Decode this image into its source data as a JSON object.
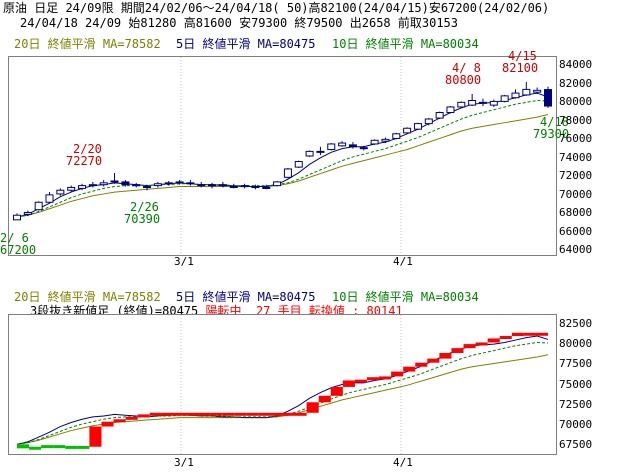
{
  "header": {
    "line1": "原油 日足 24/09限 期間24/02/06～24/04/18( 50)高82100(24/04/15)安67200(24/02/06)",
    "line2": "24/04/18 24/09 始81280 高81600 安79300 終79500 出2658 前取30153"
  },
  "ma_legend": {
    "ma20": "20日 終値平滑 MA=78582",
    "ma5": "5日 終値平滑 MA=80475",
    "ma10": "10日 終値平滑 MA=80034"
  },
  "lower_info": {
    "prefix": "3段抜き新値足 (終値)=80475",
    "status": "陽転中",
    "count": "27 手目",
    "switch": "転換値 : 80141"
  },
  "annotations": {
    "a1_date": "2/ 6",
    "a1_val": "67200",
    "a2_date": "2/20",
    "a2_val": "72270",
    "a3_date": "2/26",
    "a3_val": "70390",
    "a4_date": "4/ 8",
    "a4_val": "80800",
    "a5_date": "4/15",
    "a5_val": "82100",
    "a6_date": "4/18",
    "a6_val": "79300"
  },
  "x_ticks": [
    "3/1",
    "4/1"
  ],
  "colors": {
    "ma20": "#808000",
    "ma5": "#000080",
    "ma10": "#008000",
    "up": "#ff0000",
    "down": "#000080",
    "red_text": "#cc0000",
    "green_text": "#008000",
    "kagi_up": "#ff0000",
    "kagi_down": "#00c000"
  },
  "chart_data": [
    {
      "type": "candlestick",
      "y_ticks": [
        64000,
        66000,
        68000,
        70000,
        72000,
        74000,
        76000,
        78000,
        80000,
        82000,
        84000
      ],
      "ylim": [
        63400,
        84800
      ],
      "x_ticks": [
        "3/1",
        "4/1"
      ],
      "series": [
        {
          "name": "OHLC",
          "values": [
            [
              67200,
              67900,
              67200,
              67700
            ],
            [
              67800,
              68200,
              67600,
              68000
            ],
            [
              68300,
              69200,
              68200,
              69100
            ],
            [
              69100,
              70200,
              69000,
              69900
            ],
            [
              70000,
              70600,
              69800,
              70400
            ],
            [
              70400,
              70900,
              70200,
              70700
            ],
            [
              70600,
              71100,
              70400,
              70900
            ],
            [
              70900,
              71300,
              70700,
              71000
            ],
            [
              71000,
              71500,
              70800,
              71200
            ],
            [
              71300,
              72270,
              71100,
              71400
            ],
            [
              71300,
              71500,
              70800,
              71000
            ],
            [
              71000,
              71200,
              70700,
              70900
            ],
            [
              70700,
              71000,
              70390,
              70800
            ],
            [
              70900,
              71300,
              70700,
              71100
            ],
            [
              71100,
              71400,
              70900,
              71200
            ],
            [
              71200,
              71500,
              71000,
              71300
            ],
            [
              71200,
              71500,
              70900,
              71100
            ],
            [
              71000,
              71300,
              70700,
              70900
            ],
            [
              70900,
              71200,
              70600,
              71000
            ],
            [
              71000,
              71300,
              70700,
              70900
            ],
            [
              70800,
              71100,
              70600,
              70800
            ],
            [
              70900,
              71100,
              70600,
              70800
            ],
            [
              70700,
              71000,
              70500,
              70800
            ],
            [
              70700,
              71000,
              70500,
              70700
            ],
            [
              70900,
              71400,
              70800,
              71300
            ],
            [
              71800,
              72800,
              71700,
              72700
            ],
            [
              72900,
              73600,
              72800,
              73500
            ],
            [
              74100,
              74700,
              74000,
              74600
            ],
            [
              74600,
              75100,
              74200,
              74500
            ],
            [
              74800,
              75500,
              74700,
              75400
            ],
            [
              75200,
              75700,
              75100,
              75500
            ],
            [
              75300,
              75600,
              74900,
              75100
            ],
            [
              74900,
              75200,
              74700,
              75000
            ],
            [
              75400,
              75900,
              75300,
              75800
            ],
            [
              75700,
              76100,
              75500,
              75900
            ],
            [
              76000,
              76600,
              75900,
              76500
            ],
            [
              76600,
              77200,
              76500,
              77100
            ],
            [
              77000,
              77700,
              76900,
              77600
            ],
            [
              77600,
              78200,
              77400,
              78100
            ],
            [
              78200,
              78900,
              78100,
              78800
            ],
            [
              78800,
              79500,
              78700,
              79400
            ],
            [
              79400,
              80000,
              79300,
              79900
            ],
            [
              79600,
              80800,
              79500,
              80100
            ],
            [
              79900,
              80300,
              79500,
              79800
            ],
            [
              79600,
              80200,
              79400,
              80000
            ],
            [
              80000,
              80700,
              79900,
              80600
            ],
            [
              80400,
              81300,
              80300,
              80900
            ],
            [
              80700,
              82100,
              80600,
              81300
            ],
            [
              81000,
              81500,
              80800,
              81200
            ],
            [
              81280,
              81600,
              79300,
              79500
            ]
          ]
        },
        {
          "name": "20日 終値平滑",
          "values": [
            67500,
            67700,
            68000,
            68400,
            68800,
            69200,
            69500,
            69800,
            70000,
            70200,
            70300,
            70400,
            70500,
            70600,
            70700,
            70800,
            70800,
            70800,
            70800,
            70800,
            70800,
            70800,
            70800,
            70800,
            70900,
            71100,
            71400,
            71800,
            72200,
            72600,
            73000,
            73300,
            73600,
            73900,
            74200,
            74500,
            74800,
            75200,
            75600,
            76000,
            76400,
            76800,
            77100,
            77300,
            77500,
            77700,
            77900,
            78100,
            78300,
            78582
          ]
        },
        {
          "name": "5日 終値平滑",
          "values": [
            67500,
            67800,
            68400,
            69000,
            69700,
            70200,
            70600,
            70900,
            71000,
            71200,
            71100,
            71000,
            70900,
            71000,
            71100,
            71200,
            71100,
            71000,
            71000,
            70900,
            70900,
            70800,
            70800,
            70800,
            71000,
            71600,
            72300,
            73200,
            73900,
            74500,
            74900,
            75100,
            75100,
            75400,
            75600,
            76000,
            76500,
            77000,
            77600,
            78200,
            78800,
            79300,
            79700,
            79800,
            79900,
            80100,
            80400,
            80700,
            80900,
            80475
          ]
        },
        {
          "name": "10日 終値平滑",
          "values": [
            67500,
            67700,
            68100,
            68600,
            69100,
            69600,
            70000,
            70300,
            70600,
            70800,
            70900,
            70900,
            70900,
            71000,
            71000,
            71100,
            71100,
            71000,
            71000,
            71000,
            70900,
            70900,
            70900,
            70900,
            71000,
            71200,
            71600,
            72100,
            72600,
            73100,
            73600,
            74000,
            74300,
            74600,
            74900,
            75300,
            75700,
            76100,
            76600,
            77100,
            77600,
            78100,
            78500,
            78800,
            79100,
            79400,
            79700,
            79900,
            80100,
            80034
          ]
        }
      ]
    },
    {
      "type": "new-price-bars",
      "y_ticks": [
        67500,
        70000,
        72500,
        75000,
        77500,
        80000,
        82500
      ],
      "ylim": [
        66300,
        83500
      ],
      "x_ticks": [
        "3/1",
        "4/1"
      ],
      "series": [
        {
          "name": "3段抜き新値足",
          "values": [
            [
              67500,
              67000,
              "down"
            ],
            [
              67000,
              67200,
              "down"
            ],
            [
              67200,
              67400,
              "down"
            ],
            [
              67400,
              67100,
              "down"
            ],
            [
              67100,
              67300,
              "down"
            ],
            [
              67300,
              67200,
              "down"
            ],
            [
              67200,
              69700,
              "up"
            ],
            [
              69700,
              70300,
              "up"
            ],
            [
              70300,
              70600,
              "up"
            ],
            [
              70600,
              70900,
              "up"
            ],
            [
              70900,
              71200,
              "up"
            ],
            [
              71200,
              71400,
              "up"
            ],
            [
              71300,
              71400,
              "up"
            ],
            [
              71300,
              71400,
              "up"
            ],
            [
              71300,
              71400,
              "up"
            ],
            [
              71300,
              71400,
              "up"
            ],
            [
              71300,
              71400,
              "up"
            ],
            [
              71300,
              71400,
              "up"
            ],
            [
              71300,
              71400,
              "up"
            ],
            [
              71300,
              71400,
              "up"
            ],
            [
              71300,
              71400,
              "up"
            ],
            [
              71300,
              71400,
              "up"
            ],
            [
              71300,
              71400,
              "up"
            ],
            [
              71300,
              71400,
              "up"
            ],
            [
              71400,
              72700,
              "up"
            ],
            [
              72700,
              73500,
              "up"
            ],
            [
              73500,
              74600,
              "up"
            ],
            [
              74600,
              75400,
              "up"
            ],
            [
              75400,
              75500,
              "up"
            ],
            [
              75500,
              75800,
              "up"
            ],
            [
              75800,
              75900,
              "up"
            ],
            [
              75900,
              76500,
              "up"
            ],
            [
              76500,
              77100,
              "up"
            ],
            [
              77100,
              77600,
              "up"
            ],
            [
              77600,
              78100,
              "up"
            ],
            [
              78100,
              78800,
              "up"
            ],
            [
              78800,
              79400,
              "up"
            ],
            [
              79400,
              79900,
              "up"
            ],
            [
              79900,
              80100,
              "up"
            ],
            [
              80100,
              80600,
              "up"
            ],
            [
              80600,
              80900,
              "up"
            ],
            [
              80900,
              81300,
              "up"
            ],
            [
              81200,
              81300,
              "up"
            ],
            [
              81200,
              81300,
              "up"
            ]
          ]
        },
        {
          "name": "20日 終値平滑",
          "values": [
            67500,
            67700,
            68000,
            68400,
            68800,
            69200,
            69500,
            69800,
            70000,
            70200,
            70300,
            70400,
            70500,
            70600,
            70700,
            70800,
            70800,
            70800,
            70800,
            70800,
            70800,
            70800,
            70800,
            70800,
            70900,
            71100,
            71400,
            71800,
            72200,
            72600,
            73000,
            73300,
            73600,
            73900,
            74200,
            74500,
            74800,
            75200,
            75600,
            76000,
            76400,
            76800,
            77100,
            77300,
            77500,
            77700,
            77900,
            78100,
            78300,
            78582
          ]
        },
        {
          "name": "5日 終値平滑",
          "values": [
            67500,
            67800,
            68400,
            69000,
            69700,
            70200,
            70600,
            70900,
            71000,
            71200,
            71100,
            71000,
            70900,
            71000,
            71100,
            71200,
            71100,
            71000,
            71000,
            70900,
            70900,
            70800,
            70800,
            70800,
            71000,
            71600,
            72300,
            73200,
            73900,
            74500,
            74900,
            75100,
            75100,
            75400,
            75600,
            76000,
            76500,
            77000,
            77600,
            78200,
            78800,
            79300,
            79700,
            79800,
            79900,
            80100,
            80400,
            80700,
            80900,
            80475
          ]
        },
        {
          "name": "10日 終値平滑",
          "values": [
            67500,
            67700,
            68100,
            68600,
            69100,
            69600,
            70000,
            70300,
            70600,
            70800,
            70900,
            70900,
            70900,
            71000,
            71000,
            71100,
            71100,
            71000,
            71000,
            71000,
            70900,
            70900,
            70900,
            70900,
            71000,
            71200,
            71600,
            72100,
            72600,
            73100,
            73600,
            74000,
            74300,
            74600,
            74900,
            75300,
            75700,
            76100,
            76600,
            77100,
            77600,
            78100,
            78500,
            78800,
            79100,
            79400,
            79700,
            79900,
            80100,
            80034
          ]
        }
      ]
    }
  ]
}
